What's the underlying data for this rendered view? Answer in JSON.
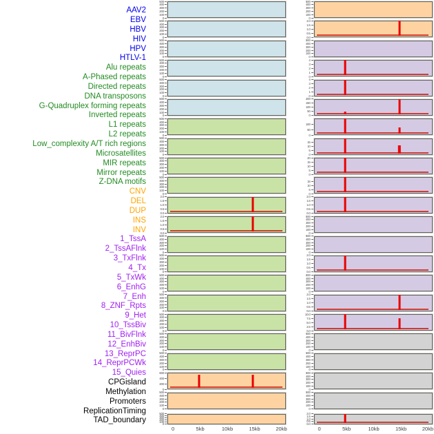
{
  "chart_data": {
    "type": "small_multiples_histogram",
    "description": "Density of genomic features in a 0-20kb window; 44 tracks in 2 columns of 22 rows (column-major order), red bars mark feature peaks",
    "x_ticks": [
      "0",
      "5kb",
      "10kb",
      "15kb",
      "20kb"
    ],
    "x_range_kb": [
      0,
      20
    ],
    "columns": 2,
    "rows_per_column": 22,
    "bar_color": "#E80000",
    "groups": {
      "virus": {
        "label_color": "#0000EE",
        "panel_color": "#CEE3EA"
      },
      "repeat": {
        "label_color": "#228B22",
        "panel_color": "#C9E3A6"
      },
      "structural_variant": {
        "label_color": "#FFA500",
        "panel_color": "#FFD3A1"
      },
      "chromatin_state": {
        "label_color": "#A020F0",
        "panel_color": "#D5CAE4"
      },
      "other": {
        "label_color": "#000000",
        "panel_color": "#D3D3D3"
      }
    },
    "tick_sets": {
      "count500": [
        "500",
        "400",
        "300",
        "200",
        "100",
        "0"
      ],
      "val2": [
        "2.0",
        "1.5",
        "1.0",
        "0.5",
        "0.0"
      ],
      "val4": [
        "4",
        "3",
        "2",
        "1",
        "0"
      ],
      "cnv600": [
        "600",
        "400",
        "200",
        "0"
      ],
      "tx200": [
        "200",
        "150",
        "100",
        "50",
        "0"
      ],
      "txwk100": [
        "",
        "100",
        "50",
        "0"
      ],
      "enh15": [
        "",
        "15",
        "10",
        "5",
        "0"
      ],
      "enh20": [
        "20",
        "15",
        "10",
        "5",
        "0"
      ],
      "quies10": [
        "10.0",
        "7.5",
        "5.0",
        "2.5",
        "0.0"
      ]
    },
    "tracks": [
      {
        "name": "AAV2",
        "group": "virus",
        "yticks": "count500",
        "peaks": []
      },
      {
        "name": "EBV",
        "group": "virus",
        "yticks": "count500",
        "peaks": []
      },
      {
        "name": "HBV",
        "group": "virus",
        "yticks": "count500",
        "peaks": []
      },
      {
        "name": "HIV",
        "group": "virus",
        "yticks": "count500",
        "peaks": []
      },
      {
        "name": "HPV",
        "group": "virus",
        "yticks": "count500",
        "peaks": []
      },
      {
        "name": "HTLV-1",
        "group": "virus",
        "yticks": "count500",
        "peaks": []
      },
      {
        "name": "Alu repeats",
        "group": "repeat",
        "yticks": "count500",
        "peaks": []
      },
      {
        "name": "A-Phased repeats",
        "group": "repeat",
        "yticks": "count500",
        "peaks": []
      },
      {
        "name": "Directed repeats",
        "group": "repeat",
        "yticks": "count500",
        "peaks": []
      },
      {
        "name": "DNA transposons",
        "group": "repeat",
        "yticks": "count500",
        "peaks": []
      },
      {
        "name": "G-Quadruplex forming repeats",
        "group": "repeat",
        "yticks": "val2",
        "peaks": [
          {
            "x_kb": 15,
            "value": 2.0,
            "rel": 1.0
          }
        ]
      },
      {
        "name": "Inverted repeats",
        "group": "repeat",
        "yticks": "val2",
        "peaks": [
          {
            "x_kb": 15,
            "value": 2.0,
            "rel": 1.0
          }
        ]
      },
      {
        "name": "L1 repeats",
        "group": "repeat",
        "yticks": "count500",
        "peaks": []
      },
      {
        "name": "L2 repeats",
        "group": "repeat",
        "yticks": "count500",
        "peaks": []
      },
      {
        "name": "Low_complexity A/T rich regions",
        "group": "repeat",
        "yticks": "count500",
        "peaks": []
      },
      {
        "name": "Microsatellites",
        "group": "repeat",
        "yticks": "count500",
        "peaks": []
      },
      {
        "name": "MIR repeats",
        "group": "repeat",
        "yticks": "count500",
        "peaks": []
      },
      {
        "name": "Mirror repeats",
        "group": "repeat",
        "yticks": "count500",
        "peaks": []
      },
      {
        "name": "Z-DNA motifs",
        "group": "repeat",
        "yticks": "count500",
        "peaks": []
      },
      {
        "name": "CNV",
        "group": "structural_variant",
        "yticks": "cnv600",
        "peaks": [
          {
            "x_kb": 5,
            "value": 600,
            "rel": 0.88
          },
          {
            "x_kb": 15,
            "value": 600,
            "rel": 0.88
          }
        ]
      },
      {
        "name": "DEL",
        "group": "structural_variant",
        "yticks": "count500",
        "peaks": []
      },
      {
        "name": "DUP",
        "group": "structural_variant",
        "yticks": "count500",
        "peaks": []
      },
      {
        "name": "INS",
        "group": "structural_variant",
        "yticks": "count500",
        "peaks": []
      },
      {
        "name": "INV",
        "group": "structural_variant",
        "yticks": "val2",
        "peaks": [
          {
            "x_kb": 15,
            "value": 2.0,
            "rel": 1.0
          }
        ]
      },
      {
        "name": "1_TssA",
        "group": "chromatin_state",
        "yticks": "count500",
        "peaks": []
      },
      {
        "name": "2_TssAFlnk",
        "group": "chromatin_state",
        "yticks": "val4",
        "peaks": [
          {
            "x_kb": 5,
            "value": 4,
            "rel": 1.0
          }
        ]
      },
      {
        "name": "3_TxFlnk",
        "group": "chromatin_state",
        "yticks": "val4",
        "peaks": [
          {
            "x_kb": 5,
            "value": 4,
            "rel": 1.0
          }
        ]
      },
      {
        "name": "4_Tx",
        "group": "chromatin_state",
        "yticks": "tx200",
        "peaks": [
          {
            "x_kb": 5,
            "value": 40,
            "rel": 0.2
          },
          {
            "x_kb": 15,
            "value": 200,
            "rel": 1.0
          }
        ]
      },
      {
        "name": "5_TxWk",
        "group": "chromatin_state",
        "yticks": "txwk100",
        "peaks": [
          {
            "x_kb": 5,
            "value": 100,
            "rel": 1.0
          },
          {
            "x_kb": 15,
            "value": 40,
            "rel": 0.4
          }
        ]
      },
      {
        "name": "6_EnhG",
        "group": "chromatin_state",
        "yticks": "enh15",
        "peaks": [
          {
            "x_kb": 5,
            "value": 15,
            "rel": 1.0
          },
          {
            "x_kb": 15,
            "value": 8,
            "rel": 0.55,
            "w": 4.5
          }
        ]
      },
      {
        "name": "7_Enh",
        "group": "chromatin_state",
        "yticks": "enh20",
        "peaks": [
          {
            "x_kb": 5,
            "value": 20,
            "rel": 1.0
          }
        ]
      },
      {
        "name": "8_ZNF_Rpts",
        "group": "chromatin_state",
        "yticks": "enh15",
        "peaks": [
          {
            "x_kb": 5,
            "value": 15,
            "rel": 1.0
          }
        ]
      },
      {
        "name": "9_Het",
        "group": "chromatin_state",
        "yticks": "val2",
        "peaks": [
          {
            "x_kb": 5,
            "value": 2.0,
            "rel": 1.0
          }
        ]
      },
      {
        "name": "10_TssBiv",
        "group": "chromatin_state",
        "yticks": "count500",
        "peaks": []
      },
      {
        "name": "11_BivFlnk",
        "group": "chromatin_state",
        "yticks": "count500",
        "peaks": []
      },
      {
        "name": "12_EnhBiv",
        "group": "chromatin_state",
        "yticks": "val2",
        "peaks": [
          {
            "x_kb": 5,
            "value": 2.0,
            "rel": 1.0
          }
        ]
      },
      {
        "name": "13_ReprPC",
        "group": "chromatin_state",
        "yticks": "count500",
        "peaks": []
      },
      {
        "name": "14_ReprPCWk",
        "group": "chromatin_state",
        "yticks": "val2",
        "peaks": [
          {
            "x_kb": 15,
            "value": 2.0,
            "rel": 1.0
          }
        ]
      },
      {
        "name": "15_Quies",
        "group": "chromatin_state",
        "yticks": "quies10",
        "peaks": [
          {
            "x_kb": 5,
            "value": 10,
            "rel": 1.0
          },
          {
            "x_kb": 15,
            "value": 7.5,
            "rel": 0.75
          }
        ]
      },
      {
        "name": "CPGisland",
        "group": "other",
        "yticks": "count500",
        "peaks": []
      },
      {
        "name": "Methylation",
        "group": "other",
        "yticks": "count500",
        "peaks": []
      },
      {
        "name": "Promoters",
        "group": "other",
        "yticks": "count500",
        "peaks": []
      },
      {
        "name": "ReplicationTiming",
        "group": "other",
        "yticks": "count500",
        "peaks": []
      },
      {
        "name": "TAD_boundary",
        "group": "other",
        "yticks": "val2",
        "peaks": [
          {
            "x_kb": 5,
            "value": 2.0,
            "rel": 1.0
          }
        ]
      }
    ]
  }
}
